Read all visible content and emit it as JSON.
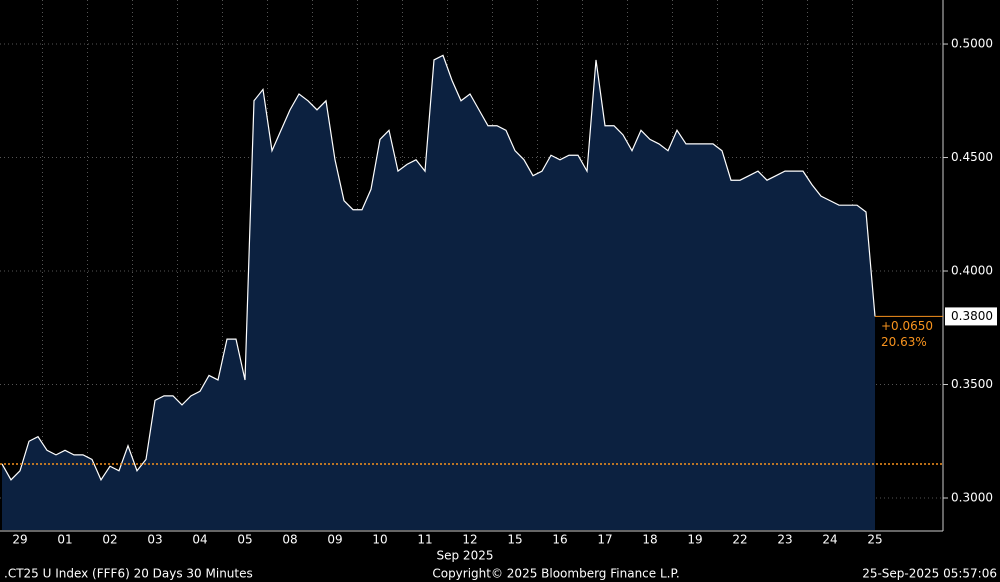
{
  "chart_data": {
    "type": "area",
    "categories": [
      "29",
      null,
      null,
      null,
      null,
      "01",
      null,
      null,
      null,
      null,
      "02",
      null,
      null,
      null,
      null,
      "03",
      null,
      null,
      null,
      null,
      "04",
      null,
      null,
      null,
      null,
      "05",
      null,
      null,
      null,
      null,
      "08",
      null,
      null,
      null,
      null,
      "09",
      null,
      null,
      null,
      null,
      "10",
      null,
      null,
      null,
      null,
      "11",
      null,
      null,
      null,
      null,
      "12",
      null,
      null,
      null,
      null,
      "15",
      null,
      null,
      null,
      null,
      "16",
      null,
      null,
      null,
      null,
      "17",
      null,
      null,
      null,
      null,
      "18",
      null,
      null,
      null,
      null,
      "19",
      null,
      null,
      null,
      null,
      "22",
      null,
      null,
      null,
      null,
      "23",
      null,
      null,
      null,
      null,
      "24",
      null,
      null,
      null,
      null,
      "25",
      null,
      null
    ],
    "values": [
      0.315,
      0.308,
      0.312,
      0.325,
      0.327,
      0.321,
      0.319,
      0.321,
      0.319,
      0.319,
      0.317,
      0.308,
      0.314,
      0.312,
      0.323,
      0.312,
      0.317,
      0.343,
      0.345,
      0.345,
      0.341,
      0.345,
      0.347,
      0.354,
      0.352,
      0.37,
      0.37,
      0.352,
      0.475,
      0.48,
      0.453,
      0.462,
      0.471,
      0.478,
      0.475,
      0.471,
      0.475,
      0.449,
      0.431,
      0.427,
      0.427,
      0.436,
      0.458,
      0.462,
      0.444,
      0.447,
      0.449,
      0.444,
      0.493,
      0.495,
      0.484,
      0.475,
      0.478,
      0.471,
      0.464,
      0.464,
      0.462,
      0.453,
      0.449,
      0.442,
      0.444,
      0.451,
      0.449,
      0.451,
      0.451,
      0.444,
      0.493,
      0.464,
      0.464,
      0.46,
      0.453,
      0.462,
      0.458,
      0.456,
      0.453,
      0.462,
      0.456,
      0.456,
      0.456,
      0.456,
      0.453,
      0.44,
      0.44,
      0.442,
      0.444,
      0.44,
      0.442,
      0.444,
      0.444,
      0.444,
      0.438,
      0.433,
      0.431,
      0.429,
      0.429,
      0.429,
      0.426,
      0.38
    ],
    "color": "#ffffff",
    "fill": "#0c2140",
    "ylim": [
      0.2859,
      0.5194
    ],
    "yticks": [
      {
        "value": 0.3,
        "label": "0.3000"
      },
      {
        "value": 0.35,
        "label": "0.3500"
      },
      {
        "value": 0.4,
        "label": "0.4000"
      },
      {
        "value": 0.45,
        "label": "0.4500"
      },
      {
        "value": 0.5,
        "label": "0.5000"
      }
    ],
    "grid": true,
    "ref_line": 0.315,
    "ref_color": "#f7931e",
    "last_tick": {
      "value": 0.38,
      "label": "0.3800"
    },
    "change_label": "+0.0650",
    "pct_label": "20.63%",
    "x_axis_label": "Sep 2025",
    "footer_left": ".CT25 U Index (FFF6) 20 Days 30 Minutes",
    "footer_center": "Copyright© 2025 Bloomberg Finance L.P.",
    "footer_right": "25-Sep-2025 05:57:06"
  }
}
